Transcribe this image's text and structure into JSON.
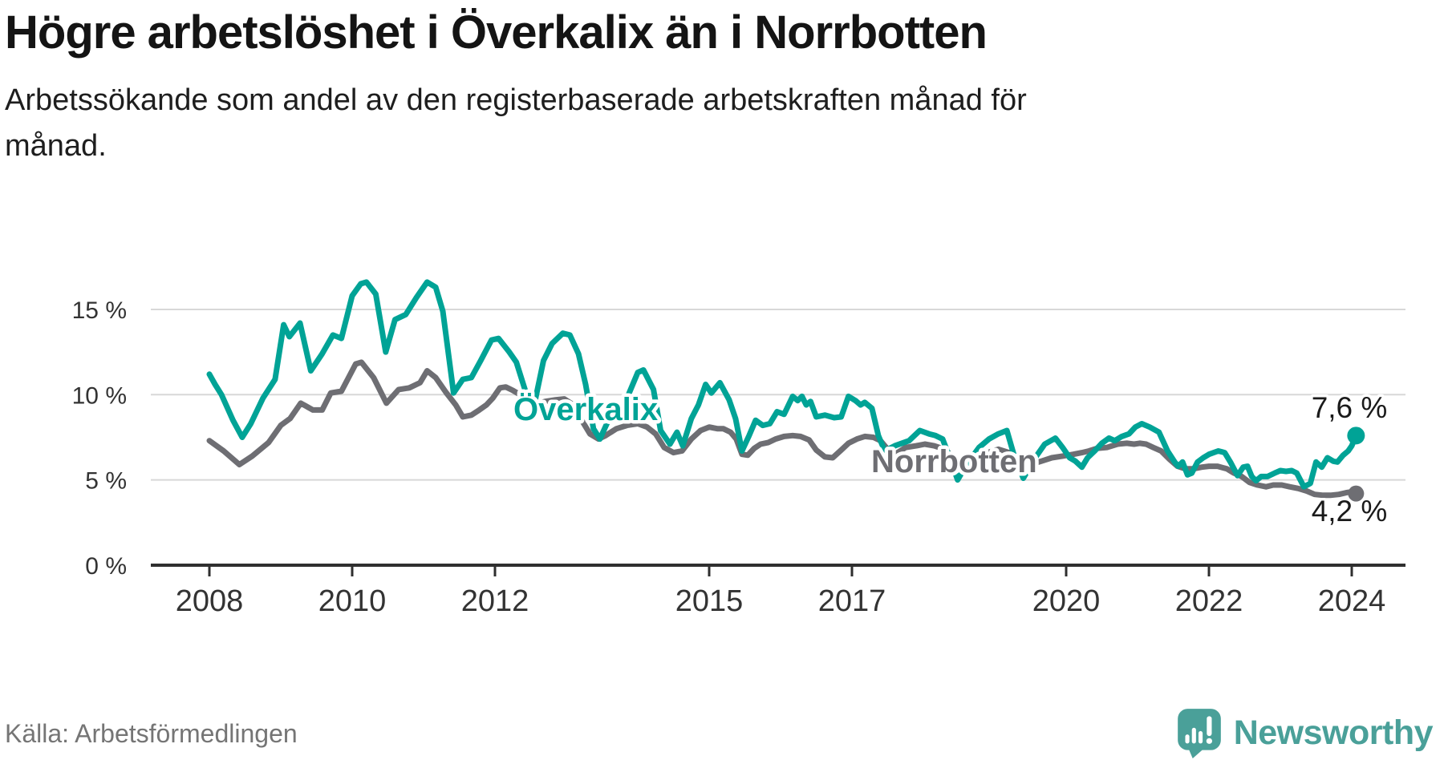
{
  "header": {
    "subtitle_lines": [
      "Arbetssökande som andel av den registerbaserade arbetskraften månad för",
      "månad."
    ]
  },
  "footer": {
    "brand": "Newsworthy"
  },
  "chart_data": {
    "type": "line",
    "title": "Högre arbetslöshet i Överkalix än i Norrbotten",
    "subtitle": "Arbetssökande som andel av den registerbaserade arbetskraften månad för månad.",
    "source": "Källa: Arbetsförmedlingen",
    "unit": "%",
    "grid": true,
    "legend": "inline-labels",
    "colors": {
      "overkalix": "#00a396",
      "norrbotten": "#6e6e73",
      "gridline": "#d8d8d8",
      "axis": "#2f2f2f",
      "brand_teal": "#4aa099"
    },
    "x_axis": {
      "ticks": [
        2008,
        2010,
        2012,
        2015,
        2017,
        2020,
        2022,
        2024
      ],
      "range": [
        2008,
        2024.7
      ]
    },
    "y_axis": {
      "ticks": [
        0,
        5,
        10,
        15
      ],
      "tick_suffix": " %",
      "range": [
        0,
        17.5
      ]
    },
    "series": [
      {
        "name": "Överkalix",
        "color": "#00a396",
        "end_value": 7.6,
        "end_label": "7,6 %",
        "points": [
          [
            2008.0,
            11.2
          ],
          [
            2008.08,
            10.6
          ],
          [
            2008.17,
            10.0
          ],
          [
            2008.33,
            8.5
          ],
          [
            2008.46,
            7.5
          ],
          [
            2008.58,
            8.3
          ],
          [
            2008.75,
            9.8
          ],
          [
            2008.92,
            10.9
          ],
          [
            2009.04,
            14.1
          ],
          [
            2009.12,
            13.4
          ],
          [
            2009.27,
            14.2
          ],
          [
            2009.42,
            11.4
          ],
          [
            2009.58,
            12.4
          ],
          [
            2009.73,
            13.5
          ],
          [
            2009.85,
            13.3
          ],
          [
            2010.0,
            15.8
          ],
          [
            2010.12,
            16.5
          ],
          [
            2010.2,
            16.6
          ],
          [
            2010.33,
            15.9
          ],
          [
            2010.47,
            12.5
          ],
          [
            2010.6,
            14.4
          ],
          [
            2010.75,
            14.7
          ],
          [
            2010.9,
            15.7
          ],
          [
            2011.05,
            16.6
          ],
          [
            2011.17,
            16.3
          ],
          [
            2011.27,
            14.9
          ],
          [
            2011.42,
            10.1
          ],
          [
            2011.55,
            10.9
          ],
          [
            2011.67,
            11.0
          ],
          [
            2011.8,
            12.0
          ],
          [
            2011.95,
            13.2
          ],
          [
            2012.05,
            13.3
          ],
          [
            2012.2,
            12.5
          ],
          [
            2012.3,
            11.9
          ],
          [
            2012.42,
            10.3
          ],
          [
            2012.55,
            9.4
          ],
          [
            2012.68,
            12.0
          ],
          [
            2012.8,
            13.0
          ],
          [
            2012.95,
            13.6
          ],
          [
            2013.05,
            13.5
          ],
          [
            2013.17,
            12.4
          ],
          [
            2013.27,
            10.6
          ],
          [
            2013.38,
            8.0
          ],
          [
            2013.47,
            7.4
          ],
          [
            2013.6,
            8.6
          ],
          [
            2013.75,
            9.2
          ],
          [
            2013.85,
            9.8
          ],
          [
            2014.0,
            11.3
          ],
          [
            2014.08,
            11.45
          ],
          [
            2014.22,
            10.3
          ],
          [
            2014.32,
            7.9
          ],
          [
            2014.45,
            7.1
          ],
          [
            2014.55,
            7.8
          ],
          [
            2014.63,
            7.0
          ],
          [
            2014.75,
            8.6
          ],
          [
            2014.85,
            9.4
          ],
          [
            2014.95,
            10.6
          ],
          [
            2015.03,
            10.1
          ],
          [
            2015.15,
            10.7
          ],
          [
            2015.28,
            9.7
          ],
          [
            2015.37,
            8.6
          ],
          [
            2015.46,
            6.7
          ],
          [
            2015.56,
            7.6
          ],
          [
            2015.65,
            8.5
          ],
          [
            2015.75,
            8.2
          ],
          [
            2015.85,
            8.3
          ],
          [
            2015.95,
            9.0
          ],
          [
            2016.05,
            8.85
          ],
          [
            2016.17,
            9.9
          ],
          [
            2016.24,
            9.65
          ],
          [
            2016.3,
            9.9
          ],
          [
            2016.36,
            9.4
          ],
          [
            2016.42,
            9.6
          ],
          [
            2016.5,
            8.7
          ],
          [
            2016.62,
            8.8
          ],
          [
            2016.75,
            8.65
          ],
          [
            2016.85,
            8.7
          ],
          [
            2016.95,
            9.9
          ],
          [
            2017.05,
            9.65
          ],
          [
            2017.12,
            9.4
          ],
          [
            2017.18,
            9.55
          ],
          [
            2017.28,
            9.2
          ],
          [
            2017.37,
            7.6
          ],
          [
            2017.46,
            6.7
          ],
          [
            2017.6,
            7.0
          ],
          [
            2017.8,
            7.3
          ],
          [
            2017.95,
            7.9
          ],
          [
            2018.08,
            7.7
          ],
          [
            2018.17,
            7.6
          ],
          [
            2018.27,
            7.4
          ],
          [
            2018.37,
            6.3
          ],
          [
            2018.48,
            5.0
          ],
          [
            2018.62,
            6.0
          ],
          [
            2018.78,
            6.9
          ],
          [
            2018.92,
            7.4
          ],
          [
            2019.05,
            7.7
          ],
          [
            2019.17,
            7.9
          ],
          [
            2019.28,
            6.3
          ],
          [
            2019.4,
            5.1
          ],
          [
            2019.55,
            6.2
          ],
          [
            2019.7,
            7.1
          ],
          [
            2019.85,
            7.45
          ],
          [
            2019.95,
            6.9
          ],
          [
            2020.05,
            6.3
          ],
          [
            2020.13,
            6.1
          ],
          [
            2020.22,
            5.75
          ],
          [
            2020.3,
            6.3
          ],
          [
            2020.4,
            6.7
          ],
          [
            2020.5,
            7.15
          ],
          [
            2020.6,
            7.45
          ],
          [
            2020.68,
            7.3
          ],
          [
            2020.78,
            7.55
          ],
          [
            2020.88,
            7.7
          ],
          [
            2020.97,
            8.1
          ],
          [
            2021.06,
            8.3
          ],
          [
            2021.17,
            8.1
          ],
          [
            2021.3,
            7.8
          ],
          [
            2021.42,
            6.7
          ],
          [
            2021.52,
            6.05
          ],
          [
            2021.57,
            5.8
          ],
          [
            2021.63,
            6.05
          ],
          [
            2021.7,
            5.3
          ],
          [
            2021.76,
            5.4
          ],
          [
            2021.84,
            6.05
          ],
          [
            2021.92,
            6.3
          ],
          [
            2022.0,
            6.5
          ],
          [
            2022.13,
            6.7
          ],
          [
            2022.22,
            6.6
          ],
          [
            2022.3,
            6.05
          ],
          [
            2022.4,
            5.25
          ],
          [
            2022.48,
            5.75
          ],
          [
            2022.54,
            5.8
          ],
          [
            2022.6,
            5.2
          ],
          [
            2022.66,
            4.95
          ],
          [
            2022.73,
            5.2
          ],
          [
            2022.82,
            5.2
          ],
          [
            2022.92,
            5.4
          ],
          [
            2023.0,
            5.55
          ],
          [
            2023.08,
            5.5
          ],
          [
            2023.16,
            5.55
          ],
          [
            2023.23,
            5.4
          ],
          [
            2023.33,
            4.6
          ],
          [
            2023.42,
            4.8
          ],
          [
            2023.5,
            6.05
          ],
          [
            2023.58,
            5.75
          ],
          [
            2023.66,
            6.3
          ],
          [
            2023.74,
            6.1
          ],
          [
            2023.8,
            6.05
          ],
          [
            2023.88,
            6.45
          ],
          [
            2023.95,
            6.7
          ],
          [
            2024.0,
            7.0
          ],
          [
            2024.06,
            7.6
          ]
        ]
      },
      {
        "name": "Norrbotten",
        "color": "#6e6e73",
        "end_value": 4.2,
        "end_label": "4,2 %",
        "points": [
          [
            2008.0,
            7.3
          ],
          [
            2008.2,
            6.7
          ],
          [
            2008.42,
            5.9
          ],
          [
            2008.6,
            6.4
          ],
          [
            2008.83,
            7.2
          ],
          [
            2009.0,
            8.2
          ],
          [
            2009.13,
            8.6
          ],
          [
            2009.28,
            9.5
          ],
          [
            2009.45,
            9.1
          ],
          [
            2009.58,
            9.1
          ],
          [
            2009.7,
            10.1
          ],
          [
            2009.85,
            10.2
          ],
          [
            2010.05,
            11.8
          ],
          [
            2010.13,
            11.9
          ],
          [
            2010.3,
            11.0
          ],
          [
            2010.48,
            9.5
          ],
          [
            2010.65,
            10.3
          ],
          [
            2010.8,
            10.4
          ],
          [
            2010.95,
            10.7
          ],
          [
            2011.05,
            11.4
          ],
          [
            2011.17,
            11.0
          ],
          [
            2011.32,
            10.1
          ],
          [
            2011.45,
            9.4
          ],
          [
            2011.55,
            8.7
          ],
          [
            2011.67,
            8.8
          ],
          [
            2011.78,
            9.1
          ],
          [
            2011.88,
            9.4
          ],
          [
            2011.97,
            9.8
          ],
          [
            2012.07,
            10.4
          ],
          [
            2012.15,
            10.45
          ],
          [
            2012.25,
            10.25
          ],
          [
            2012.35,
            10.0
          ],
          [
            2012.47,
            9.6
          ],
          [
            2012.57,
            9.4
          ],
          [
            2012.7,
            9.6
          ],
          [
            2012.85,
            9.7
          ],
          [
            2012.97,
            9.75
          ],
          [
            2013.1,
            9.4
          ],
          [
            2013.2,
            8.6
          ],
          [
            2013.33,
            7.7
          ],
          [
            2013.45,
            7.4
          ],
          [
            2013.55,
            7.6
          ],
          [
            2013.7,
            8.0
          ],
          [
            2013.85,
            8.2
          ],
          [
            2014.0,
            8.3
          ],
          [
            2014.13,
            8.1
          ],
          [
            2014.25,
            7.7
          ],
          [
            2014.37,
            6.9
          ],
          [
            2014.5,
            6.6
          ],
          [
            2014.62,
            6.7
          ],
          [
            2014.75,
            7.4
          ],
          [
            2014.88,
            7.9
          ],
          [
            2015.0,
            8.1
          ],
          [
            2015.12,
            8.0
          ],
          [
            2015.2,
            8.0
          ],
          [
            2015.3,
            7.8
          ],
          [
            2015.38,
            7.4
          ],
          [
            2015.46,
            6.5
          ],
          [
            2015.54,
            6.45
          ],
          [
            2015.63,
            6.85
          ],
          [
            2015.72,
            7.1
          ],
          [
            2015.83,
            7.2
          ],
          [
            2015.93,
            7.4
          ],
          [
            2016.05,
            7.55
          ],
          [
            2016.17,
            7.6
          ],
          [
            2016.28,
            7.55
          ],
          [
            2016.4,
            7.35
          ],
          [
            2016.5,
            6.75
          ],
          [
            2016.62,
            6.35
          ],
          [
            2016.73,
            6.3
          ],
          [
            2016.85,
            6.75
          ],
          [
            2016.95,
            7.15
          ],
          [
            2017.07,
            7.4
          ],
          [
            2017.18,
            7.55
          ],
          [
            2017.3,
            7.5
          ],
          [
            2017.4,
            7.3
          ],
          [
            2017.52,
            6.7
          ],
          [
            2017.62,
            6.55
          ],
          [
            2017.75,
            6.9
          ],
          [
            2017.9,
            7.0
          ],
          [
            2018.02,
            7.1
          ],
          [
            2018.15,
            7.0
          ],
          [
            2018.3,
            6.8
          ],
          [
            2018.45,
            6.2
          ],
          [
            2018.6,
            6.1
          ],
          [
            2018.75,
            6.4
          ],
          [
            2018.9,
            6.6
          ],
          [
            2019.05,
            6.8
          ],
          [
            2019.2,
            6.6
          ],
          [
            2019.35,
            6.0
          ],
          [
            2019.5,
            5.9
          ],
          [
            2019.65,
            6.1
          ],
          [
            2019.8,
            6.3
          ],
          [
            2019.95,
            6.4
          ],
          [
            2020.1,
            6.5
          ],
          [
            2020.22,
            6.6
          ],
          [
            2020.32,
            6.7
          ],
          [
            2020.43,
            6.85
          ],
          [
            2020.57,
            6.9
          ],
          [
            2020.72,
            7.1
          ],
          [
            2020.85,
            7.15
          ],
          [
            2020.95,
            7.1
          ],
          [
            2021.03,
            7.15
          ],
          [
            2021.12,
            7.1
          ],
          [
            2021.22,
            6.9
          ],
          [
            2021.33,
            6.7
          ],
          [
            2021.45,
            6.2
          ],
          [
            2021.56,
            5.8
          ],
          [
            2021.67,
            5.65
          ],
          [
            2021.78,
            5.65
          ],
          [
            2021.9,
            5.75
          ],
          [
            2022.0,
            5.8
          ],
          [
            2022.12,
            5.8
          ],
          [
            2022.25,
            5.65
          ],
          [
            2022.35,
            5.4
          ],
          [
            2022.46,
            5.2
          ],
          [
            2022.57,
            4.85
          ],
          [
            2022.68,
            4.7
          ],
          [
            2022.8,
            4.6
          ],
          [
            2022.9,
            4.7
          ],
          [
            2023.02,
            4.7
          ],
          [
            2023.13,
            4.6
          ],
          [
            2023.25,
            4.5
          ],
          [
            2023.37,
            4.35
          ],
          [
            2023.48,
            4.15
          ],
          [
            2023.6,
            4.1
          ],
          [
            2023.7,
            4.1
          ],
          [
            2023.82,
            4.15
          ],
          [
            2023.92,
            4.25
          ],
          [
            2024.0,
            4.3
          ],
          [
            2024.06,
            4.2
          ]
        ]
      }
    ]
  }
}
